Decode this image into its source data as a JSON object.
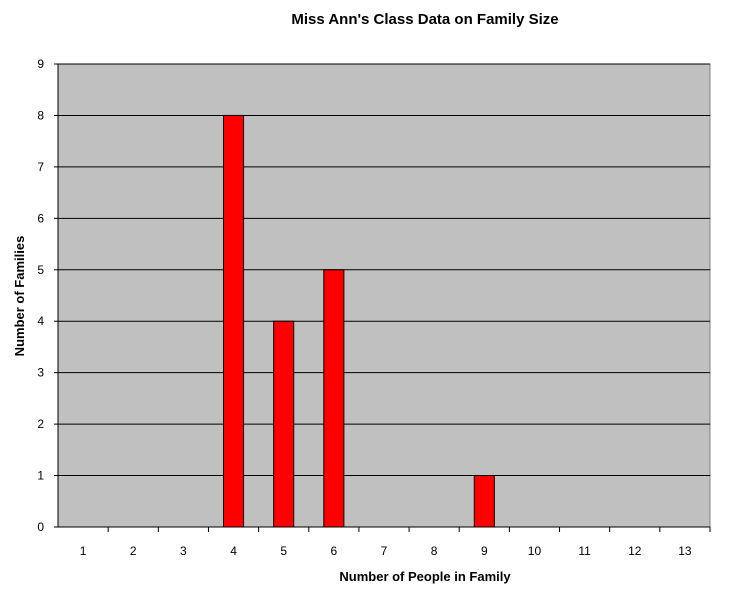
{
  "chart_data": {
    "type": "bar",
    "title": "Miss Ann's Class Data on Family Size",
    "xlabel": "Number of People in Family",
    "ylabel": "Number of Families",
    "categories": [
      "1",
      "2",
      "3",
      "4",
      "5",
      "6",
      "7",
      "8",
      "9",
      "10",
      "11",
      "12",
      "13"
    ],
    "values": [
      0,
      0,
      0,
      8,
      4,
      5,
      0,
      0,
      1,
      0,
      0,
      0,
      0
    ],
    "yticks": [
      "0",
      "1",
      "2",
      "3",
      "4",
      "5",
      "6",
      "7",
      "8",
      "9"
    ],
    "ylim": [
      0,
      9
    ],
    "grid": true,
    "legend": "none",
    "colors": {
      "bar": "#ff0000",
      "plot_background": "#c0c0c0",
      "gridline": "#000000"
    }
  }
}
